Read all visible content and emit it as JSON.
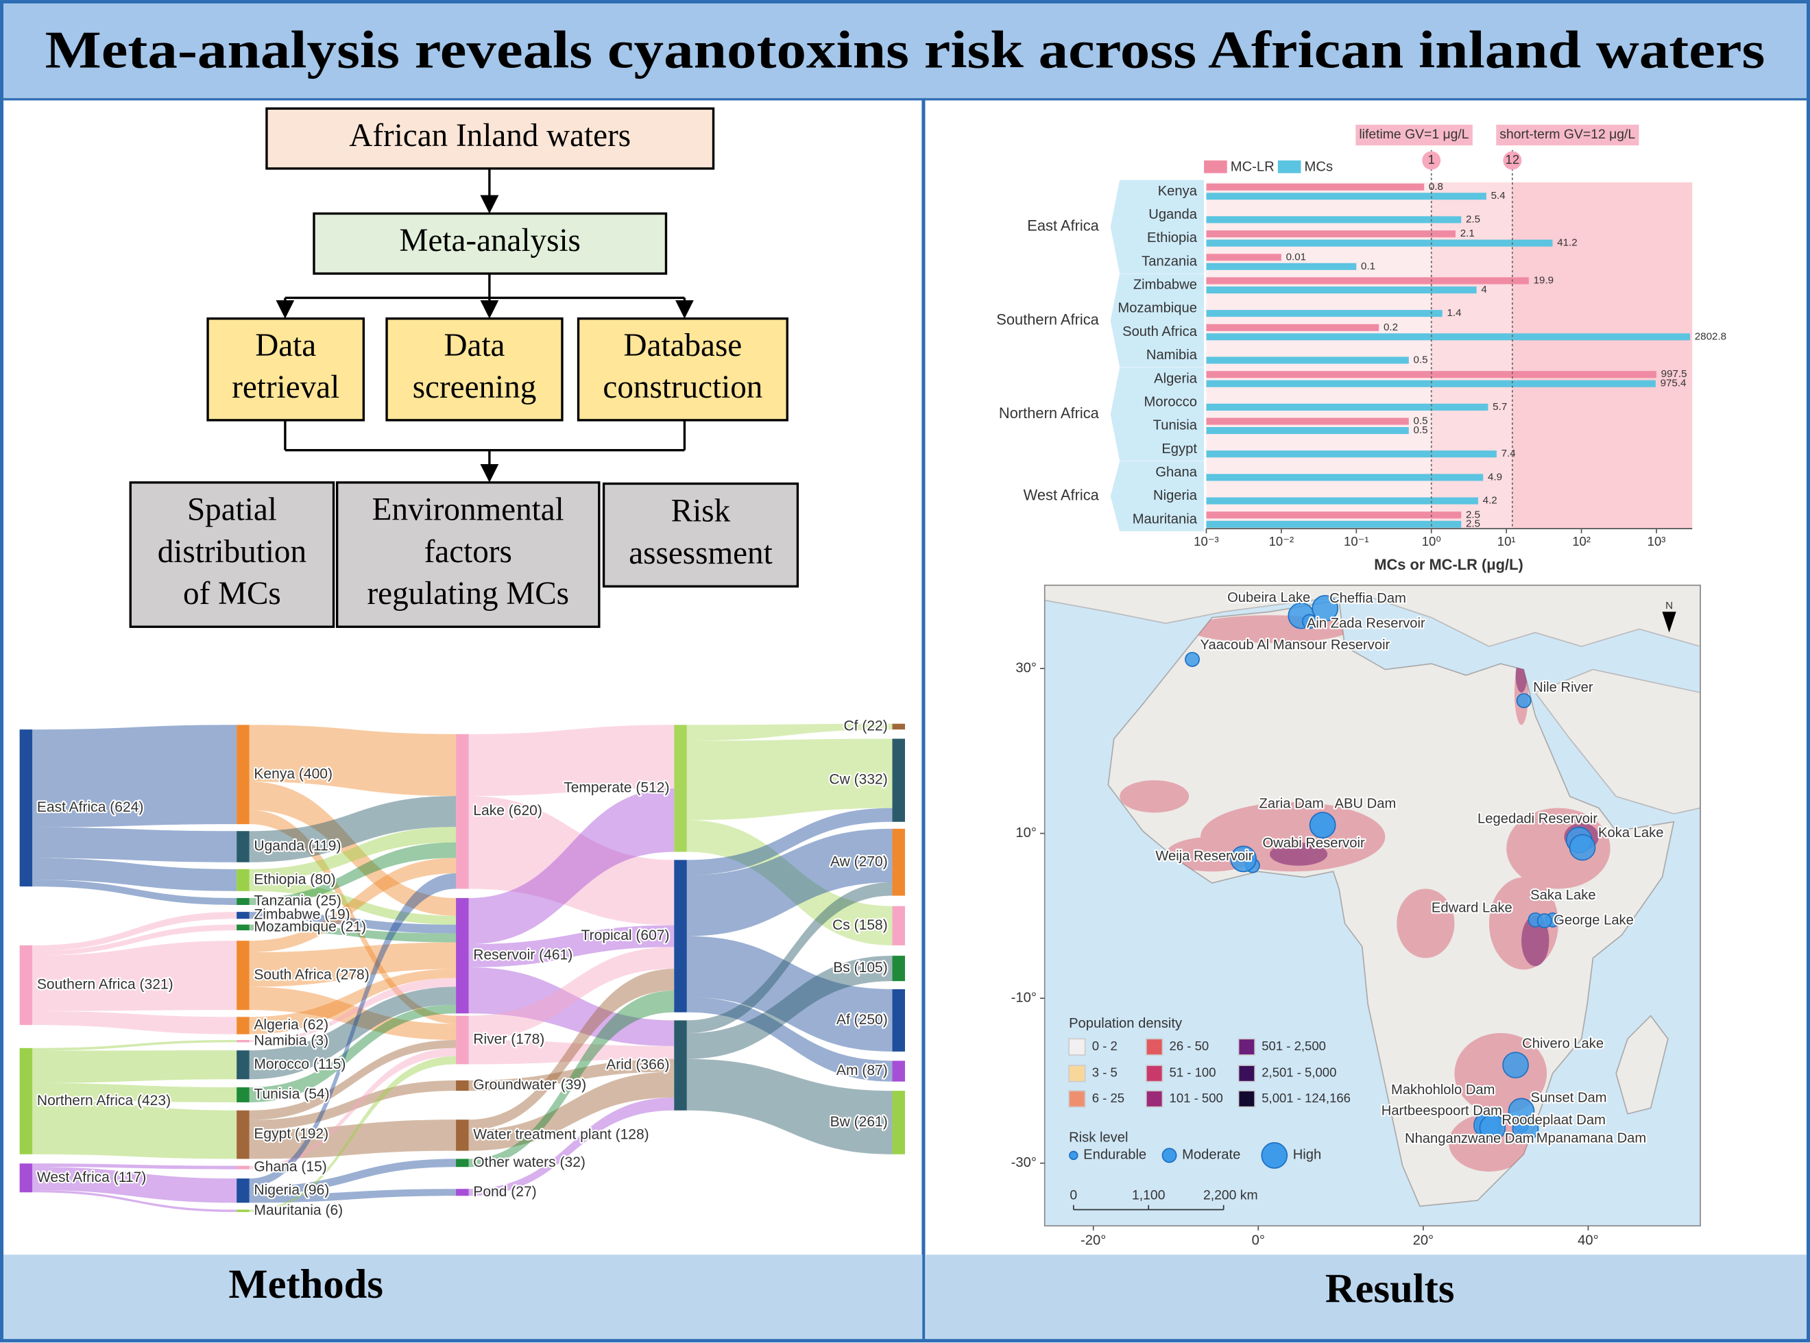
{
  "header": {
    "title": "Meta-analysis reveals cyanotoxins risk across African inland waters"
  },
  "methods": {
    "label": "Methods",
    "flowchart": {
      "nodes": [
        {
          "lines": [
            "African  Inland  waters"
          ]
        },
        {
          "lines": [
            "Meta-analysis"
          ]
        },
        {
          "lines": [
            "Data",
            "retrieval"
          ]
        },
        {
          "lines": [
            "Data",
            "screening"
          ]
        },
        {
          "lines": [
            "Database",
            "construction"
          ]
        },
        {
          "lines": [
            "Spatial",
            "distribution",
            "of MCs"
          ]
        },
        {
          "lines": [
            "Environmental",
            "factors",
            "regulating  MCs"
          ]
        },
        {
          "lines": [
            "Risk",
            "assessment"
          ]
        }
      ]
    },
    "sankey": {
      "columns": [
        [
          {
            "label": "East Africa (624)",
            "color": "#1f4e9c"
          },
          {
            "label": "Southern Africa (321)",
            "color": "#f6a6c4"
          },
          {
            "label": "Northern Africa (423)",
            "color": "#9bd14a"
          },
          {
            "label": "West Africa (117)",
            "color": "#a64fd6"
          }
        ],
        [
          {
            "label": "Kenya (400)",
            "color": "#f0892e"
          },
          {
            "label": "Uganda (119)",
            "color": "#2b5b6a"
          },
          {
            "label": "Ethiopia (80)",
            "color": "#9bd14a"
          },
          {
            "label": "Tanzania (25)",
            "color": "#1f8a3a"
          },
          {
            "label": "Zimbabwe (19)",
            "color": "#1f4e9c"
          },
          {
            "label": "Mozambique (21)",
            "color": "#1f8a3a"
          },
          {
            "label": "South Africa (278)",
            "color": "#f0892e"
          },
          {
            "label": "Algeria (62)",
            "color": "#f0892e"
          },
          {
            "label": "Namibia (3)",
            "color": "#f6a6c4"
          },
          {
            "label": "Morocco (115)",
            "color": "#2b5b6a"
          },
          {
            "label": "Tunisia (54)",
            "color": "#1f8a3a"
          },
          {
            "label": "Egypt (192)",
            "color": "#a0673a"
          },
          {
            "label": "Ghana (15)",
            "color": "#f6a6c4"
          },
          {
            "label": "Nigeria (96)",
            "color": "#1f4e9c"
          },
          {
            "label": "Mauritania (6)",
            "color": "#9bd14a"
          }
        ],
        [
          {
            "label": "Lake (620)",
            "color": "#f6a6c4"
          },
          {
            "label": "Reservoir (461)",
            "color": "#a64fd6"
          },
          {
            "label": "River (178)",
            "color": "#f6a6c4"
          },
          {
            "label": "Groundwater (39)",
            "color": "#a0673a"
          },
          {
            "label": "Water treatment plant (128)",
            "color": "#a0673a"
          },
          {
            "label": "Other waters (32)",
            "color": "#1f8a3a"
          },
          {
            "label": "Pond (27)",
            "color": "#a64fd6"
          }
        ],
        [
          {
            "label": "Temperate (512)",
            "color": "#a8d65a"
          },
          {
            "label": "Tropical (607)",
            "color": "#1f4e9c"
          },
          {
            "label": "Arid (366)",
            "color": "#2b5b6a"
          }
        ],
        [
          {
            "label": "Cf (22)",
            "color": "#a0673a"
          },
          {
            "label": "Cw (332)",
            "color": "#2b5b6a"
          },
          {
            "label": "Aw (270)",
            "color": "#f0892e"
          },
          {
            "label": "Cs (158)",
            "color": "#f6a6c4"
          },
          {
            "label": "Bs (105)",
            "color": "#1f8a3a"
          },
          {
            "label": "Af (250)",
            "color": "#1f4e9c"
          },
          {
            "label": "Am (87)",
            "color": "#a64fd6"
          },
          {
            "label": "Bw (261)",
            "color": "#9bd14a"
          }
        ]
      ]
    }
  },
  "chart_data": {
    "type": "hbar",
    "log_scale": true,
    "x_label": "MCs or MC-LR (μg/L)",
    "groups": [
      {
        "name": "East Africa",
        "categories": [
          "Kenya",
          "Uganda",
          "Ethiopia",
          "Tanzania"
        ]
      },
      {
        "name": "Southern Africa",
        "categories": [
          "Zimbabwe",
          "Mozambique",
          "South Africa",
          "Namibia"
        ]
      },
      {
        "name": "Northern Africa",
        "categories": [
          "Algeria",
          "Morocco",
          "Tunisia",
          "Egypt"
        ]
      },
      {
        "name": "West Africa",
        "categories": [
          "Ghana",
          "Nigeria",
          "Mauritania"
        ]
      }
    ],
    "series": [
      {
        "name": "MC-LR",
        "color": "#f08aa3",
        "values": [
          0.8,
          null,
          2.1,
          0.01,
          19.9,
          null,
          0.2,
          null,
          997.5,
          null,
          0.5,
          null,
          null,
          null,
          2.5
        ]
      },
      {
        "name": "MCs",
        "color": "#5bc4e0",
        "values": [
          5.4,
          2.5,
          41.2,
          0.1,
          4,
          1.4,
          2802.8,
          0.5,
          975.4,
          5.7,
          0.5,
          7.4,
          4.9,
          4.2,
          2.5
        ]
      }
    ],
    "xlim": [
      0.001,
      3000
    ],
    "xticks": [
      {
        "value": 0.001,
        "label": "10⁻³"
      },
      {
        "value": 0.01,
        "label": "10⁻²"
      },
      {
        "value": 0.1,
        "label": "10⁻¹"
      },
      {
        "value": 1,
        "label": "10⁰"
      },
      {
        "value": 10,
        "label": "10¹"
      },
      {
        "value": 100,
        "label": "10²"
      },
      {
        "value": 1000,
        "label": "10³"
      }
    ],
    "ref_lines": [
      {
        "value": 1,
        "label": "lifetime GV=1 μg/L"
      },
      {
        "value": 12,
        "label": "short-term GV=12 μg/L"
      }
    ]
  },
  "map": {
    "label": "Results",
    "xlim": [
      -25.9,
      53.6
    ],
    "ylim": [
      -37.6,
      40.1
    ],
    "xticks": [
      {
        "value": -20,
        "label": "-20°"
      },
      {
        "value": 0,
        "label": "0°"
      },
      {
        "value": 20,
        "label": "20°"
      },
      {
        "value": 40,
        "label": "40°"
      }
    ],
    "yticks": [
      {
        "value": 30,
        "label": "30°"
      },
      {
        "value": 10,
        "label": "10°"
      },
      {
        "value": -10,
        "label": "-10°"
      },
      {
        "value": -30,
        "label": "-30°"
      }
    ],
    "north": "N",
    "population_legend": {
      "title": "Population density",
      "classes": [
        {
          "label": "0 - 2",
          "color": "#f1efef"
        },
        {
          "label": "3 - 5",
          "color": "#f7d79a"
        },
        {
          "label": "6 - 25",
          "color": "#ee9070"
        },
        {
          "label": "26 - 50",
          "color": "#e05a60"
        },
        {
          "label": "51 - 100",
          "color": "#c93a6a"
        },
        {
          "label": "101 - 500",
          "color": "#9b2a78"
        },
        {
          "label": "501 - 2,500",
          "color": "#6b1f7a"
        },
        {
          "label": "2,501 - 5,000",
          "color": "#3a0f5a"
        },
        {
          "label": "5,001 - 124,166",
          "color": "#130a30"
        }
      ]
    },
    "risk_legend": {
      "title": "Risk level",
      "levels": [
        "Endurable",
        "Moderate",
        "High"
      ]
    },
    "scale_bar": [
      0,
      {
        "value": 1100,
        "label": "1,100"
      },
      {
        "value": 2200,
        "label": "2,200 km"
      }
    ],
    "sites": [
      {
        "name": "Oubeira Lake",
        "lon": 5.2,
        "lat": 36.4,
        "risk": "High"
      },
      {
        "name": "Cheffia Dam",
        "lon": 8.1,
        "lat": 37.3,
        "risk": "High"
      },
      {
        "name": "Ain Zada Reservoir",
        "lon": 6.2,
        "lat": 35.7,
        "risk": "Moderate"
      },
      {
        "name": "Yaacoub Al Mansour Reservoir",
        "lon": -8.0,
        "lat": 31.1,
        "risk": "Moderate"
      },
      {
        "name": "Nile River",
        "lon": 32.2,
        "lat": 26.1,
        "risk": "Moderate"
      },
      {
        "name": "Zaria Dam",
        "lon": 7.8,
        "lat": 11.0,
        "risk": "High"
      },
      {
        "name": "ABU Dam",
        "lon": 7.8,
        "lat": 11.0,
        "risk": "High"
      },
      {
        "name": "Owabi Reservoir",
        "lon": -0.7,
        "lat": 6.1,
        "risk": "Moderate"
      },
      {
        "name": "Weija Reservoir",
        "lon": -1.8,
        "lat": 6.9,
        "risk": "High"
      },
      {
        "name": "Legedadi  Reservoir",
        "lon": 38.9,
        "lat": 9.2,
        "risk": "High"
      },
      {
        "name": "Koka Lake",
        "lon": 39.3,
        "lat": 8.3,
        "risk": "High"
      },
      {
        "name": "Saka Lake",
        "lon": 35.7,
        "lat": -0.5,
        "risk": "Moderate"
      },
      {
        "name": "Edward Lake",
        "lon": 33.6,
        "lat": -0.5,
        "risk": "Moderate"
      },
      {
        "name": "George Lake",
        "lon": 34.7,
        "lat": -0.6,
        "risk": "Moderate"
      },
      {
        "name": "Chivero Lake",
        "lon": 31.2,
        "lat": -18.1,
        "risk": "High"
      },
      {
        "name": "Makhohlolo Dam",
        "lon": 28.0,
        "lat": -25.4,
        "risk": "High"
      },
      {
        "name": "Sunset Dam",
        "lon": 31.9,
        "lat": -23.7,
        "risk": "High"
      },
      {
        "name": "Hartbeespoort Dam",
        "lon": 27.7,
        "lat": -25.4,
        "risk": "High"
      },
      {
        "name": "Roodeplaat Dam",
        "lon": 28.4,
        "lat": -25.7,
        "risk": "High"
      },
      {
        "name": "Nhanganzwane Dam",
        "lon": 31.9,
        "lat": -25.4,
        "risk": "Moderate"
      },
      {
        "name": "Mpanamana Dam",
        "lon": 32.4,
        "lat": -25.8,
        "risk": "High"
      }
    ]
  }
}
